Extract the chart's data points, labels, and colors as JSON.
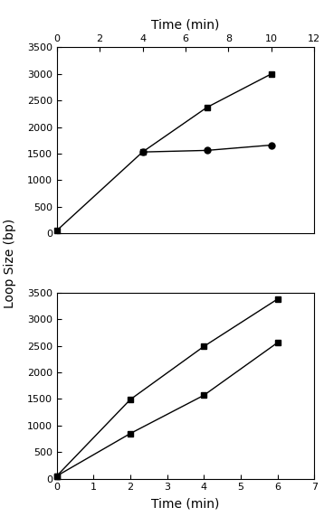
{
  "top": {
    "series1": {
      "x": [
        0,
        4,
        7,
        10
      ],
      "y": [
        50,
        1530,
        2370,
        3000
      ],
      "marker": "s",
      "color": "black"
    },
    "series2": {
      "x": [
        4,
        7,
        10
      ],
      "y": [
        1530,
        1560,
        1660
      ],
      "marker": "o",
      "color": "black"
    },
    "xlim": [
      0,
      12
    ],
    "ylim": [
      0,
      3500
    ],
    "xticks": [
      0,
      2,
      4,
      6,
      8,
      10,
      12
    ],
    "yticks": [
      0,
      500,
      1000,
      1500,
      2000,
      2500,
      3000,
      3500
    ],
    "xlabel": "Time (min)"
  },
  "bottom": {
    "series1": {
      "x": [
        0,
        2,
        4,
        6
      ],
      "y": [
        50,
        1490,
        2490,
        3380
      ],
      "marker": "s",
      "color": "black"
    },
    "series2": {
      "x": [
        0,
        2,
        4,
        6
      ],
      "y": [
        50,
        850,
        1570,
        2560
      ],
      "marker": "s",
      "color": "black"
    },
    "xlim": [
      0,
      7
    ],
    "ylim": [
      0,
      3500
    ],
    "xticks": [
      0,
      1,
      2,
      3,
      4,
      5,
      6,
      7
    ],
    "yticks": [
      0,
      500,
      1000,
      1500,
      2000,
      2500,
      3000,
      3500
    ],
    "xlabel": "Time (min)"
  },
  "shared_ylabel": "Loop Size (bp)",
  "background_color": "#ffffff",
  "marker_size": 5,
  "line_width": 1.0,
  "tick_font_size": 8,
  "label_font_size": 10
}
